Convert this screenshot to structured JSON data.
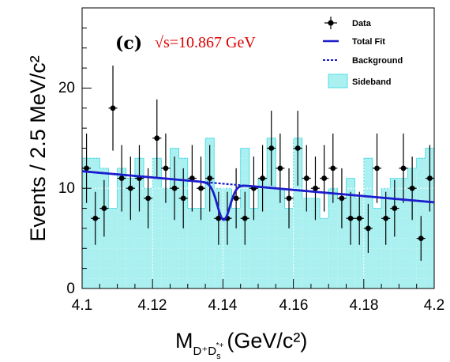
{
  "colors": {
    "sideband_fill": "#aaf0f0",
    "sideband_line": "#38d8e0",
    "fit": "#1c1ccc",
    "background": "#1c1ccc",
    "data": "#000000",
    "energy_label": "#dd0000"
  },
  "chart_data": {
    "type": "histogram",
    "panel_label": "(c)",
    "energy_label": "√s=10.867 GeV",
    "ylabel": "Events / 2.5 MeV/c²",
    "xlabel_main": "M",
    "xlabel_sub": "D⁺D",
    "xlabel_subsub_s": "s",
    "xlabel_subsub_sup": "*+",
    "xlabel_unit": "(GeV/c²)",
    "xlim": [
      4.1,
      4.2
    ],
    "ylim": [
      0,
      28
    ],
    "x_ticks": [
      "4.1",
      "4.12",
      "4.14",
      "4.16",
      "4.18",
      "4.2"
    ],
    "x_tick_values": [
      4.1,
      4.12,
      4.14,
      4.16,
      4.18,
      4.2
    ],
    "y_ticks": [
      "0",
      "10",
      "20"
    ],
    "y_tick_values": [
      0,
      10,
      20
    ],
    "legend": [
      {
        "label": "Data",
        "style": "marker"
      },
      {
        "label": "Total Fit",
        "style": "solid"
      },
      {
        "label": "Background",
        "style": "dashed"
      },
      {
        "label": "Sideband",
        "style": "fill"
      }
    ],
    "bin_width": 0.0025,
    "data": {
      "x": [
        4.10125,
        4.10375,
        4.10625,
        4.10875,
        4.11125,
        4.11375,
        4.11625,
        4.11875,
        4.12125,
        4.12375,
        4.12625,
        4.12875,
        4.13125,
        4.13375,
        4.13625,
        4.13875,
        4.14125,
        4.14375,
        4.14625,
        4.14875,
        4.15125,
        4.15375,
        4.15625,
        4.15875,
        4.16125,
        4.16375,
        4.16625,
        4.16875,
        4.17125,
        4.17375,
        4.17625,
        4.17875,
        4.18125,
        4.18375,
        4.18625,
        4.18875,
        4.19125,
        4.19375,
        4.19625,
        4.19875
      ],
      "y": [
        12,
        7,
        8,
        18,
        11,
        10,
        11,
        9,
        15,
        12,
        10,
        9,
        11,
        10,
        11,
        7,
        7,
        9,
        7,
        10,
        11,
        14,
        12,
        9,
        14,
        11,
        10,
        11,
        12,
        9,
        7,
        7,
        6,
        12,
        7,
        8,
        12,
        10,
        5,
        11
      ]
    },
    "sideband": [
      13,
      13,
      12,
      8,
      12,
      11,
      13,
      10,
      13,
      10,
      14,
      13,
      8,
      8,
      15,
      10,
      10,
      8,
      14,
      8,
      11,
      15,
      10,
      8,
      15,
      9,
      9,
      7,
      10,
      9,
      11,
      9,
      13,
      8,
      10,
      11,
      11,
      12,
      13,
      14
    ],
    "fit_params": {
      "bkg_at_4p1": 11.7,
      "bkg_at_4p2": 8.6,
      "peak_center": 4.1402,
      "peak_sigma": 0.0018,
      "peak_depth": 3.6
    }
  }
}
